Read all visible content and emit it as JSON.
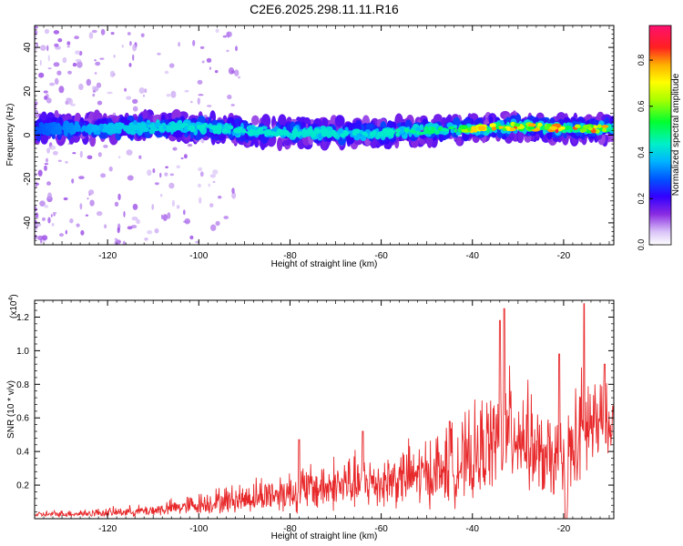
{
  "figure_title": "C2E6.2025.298.11.11.R16",
  "chart_data": [
    {
      "type": "heatmap",
      "title": "C2E6.2025.298.11.11.R16",
      "xlabel": "Height of straight line (km)",
      "ylabel": "Frequency (Hz)",
      "xlim": [
        -136,
        -9
      ],
      "ylim": [
        -50,
        50
      ],
      "x_ticks": [
        -120,
        -100,
        -80,
        -60,
        -40,
        -20
      ],
      "x_tick_labels": [
        "-120",
        "-100",
        "-80",
        "-60",
        "-40",
        "-20"
      ],
      "y_ticks": [
        -40,
        -20,
        0,
        20,
        40
      ],
      "y_tick_labels": [
        "-40",
        "-20",
        "0",
        "20",
        "40"
      ],
      "colorbar": {
        "label": "Normalized spectral amplitude",
        "range": [
          0,
          0.95
        ],
        "ticks": [
          0,
          0.2,
          0.4,
          0.6,
          0.8
        ],
        "tick_labels": [
          "0.0",
          "0.2",
          "0.4",
          "0.6",
          "0.8"
        ]
      },
      "signal_band_center_hz": [
        {
          "x": -135,
          "f": 3
        },
        {
          "x": -120,
          "f": 3
        },
        {
          "x": -105,
          "f": 4
        },
        {
          "x": -90,
          "f": 2
        },
        {
          "x": -80,
          "f": 1
        },
        {
          "x": -70,
          "f": 1
        },
        {
          "x": -60,
          "f": 1
        },
        {
          "x": -50,
          "f": 2
        },
        {
          "x": -40,
          "f": 3
        },
        {
          "x": -30,
          "f": 4
        },
        {
          "x": -20,
          "f": 3
        },
        {
          "x": -10,
          "f": 3
        }
      ],
      "peak_amplitude_by_height": [
        {
          "x": -135,
          "a": 0.3
        },
        {
          "x": -120,
          "a": 0.4
        },
        {
          "x": -100,
          "a": 0.45
        },
        {
          "x": -80,
          "a": 0.45
        },
        {
          "x": -60,
          "a": 0.45
        },
        {
          "x": -45,
          "a": 0.55
        },
        {
          "x": -40,
          "a": 0.8
        },
        {
          "x": -30,
          "a": 0.9
        },
        {
          "x": -20,
          "a": 0.95
        },
        {
          "x": -10,
          "a": 0.85
        }
      ]
    },
    {
      "type": "line",
      "title": "",
      "xlabel": "Height of straight line (km)",
      "ylabel": "SNR (10 * v/v)",
      "y_multiplier_label": "(x10",
      "y_multiplier_exp": "4",
      "y_multiplier_close": ")",
      "xlim": [
        -136,
        -9
      ],
      "ylim": [
        0,
        1.3
      ],
      "x_ticks": [
        -120,
        -100,
        -80,
        -60,
        -40,
        -20
      ],
      "x_tick_labels": [
        "-120",
        "-100",
        "-80",
        "-60",
        "-40",
        "-20"
      ],
      "y_ticks": [
        0.2,
        0.4,
        0.6,
        0.8,
        1.0,
        1.2
      ],
      "y_tick_labels": [
        "0.2",
        "0.4",
        "0.6",
        "0.8",
        "1.0",
        "1.2"
      ],
      "series": [
        {
          "name": "SNR",
          "color": "#e8292b",
          "envelope": [
            {
              "x": -136,
              "base": 0.02,
              "amp": 0.03
            },
            {
              "x": -120,
              "base": 0.03,
              "amp": 0.05
            },
            {
              "x": -110,
              "base": 0.04,
              "amp": 0.07
            },
            {
              "x": -100,
              "base": 0.07,
              "amp": 0.12
            },
            {
              "x": -90,
              "base": 0.1,
              "amp": 0.17
            },
            {
              "x": -80,
              "base": 0.13,
              "amp": 0.25
            },
            {
              "x": -70,
              "base": 0.16,
              "amp": 0.3
            },
            {
              "x": -60,
              "base": 0.18,
              "amp": 0.32
            },
            {
              "x": -50,
              "base": 0.22,
              "amp": 0.38
            },
            {
              "x": -40,
              "base": 0.28,
              "amp": 0.5
            },
            {
              "x": -35,
              "base": 0.4,
              "amp": 0.6
            },
            {
              "x": -30,
              "base": 0.45,
              "amp": 0.65
            },
            {
              "x": -25,
              "base": 0.3,
              "amp": 0.45
            },
            {
              "x": -20,
              "base": 0.25,
              "amp": 0.55
            },
            {
              "x": -15,
              "base": 0.45,
              "amp": 0.7
            },
            {
              "x": -9,
              "base": 0.55,
              "amp": 0.25
            }
          ],
          "peaks": [
            {
              "x": -78,
              "y": 0.47
            },
            {
              "x": -64,
              "y": 0.52
            },
            {
              "x": -45,
              "y": 0.58
            },
            {
              "x": -34,
              "y": 1.18
            },
            {
              "x": -33,
              "y": 1.25
            },
            {
              "x": -21,
              "y": 0.98
            },
            {
              "x": -15.5,
              "y": 1.28
            },
            {
              "x": -11,
              "y": 0.92
            }
          ],
          "dropouts": [
            {
              "x": -19.5,
              "y": 0.0
            }
          ]
        }
      ]
    }
  ]
}
